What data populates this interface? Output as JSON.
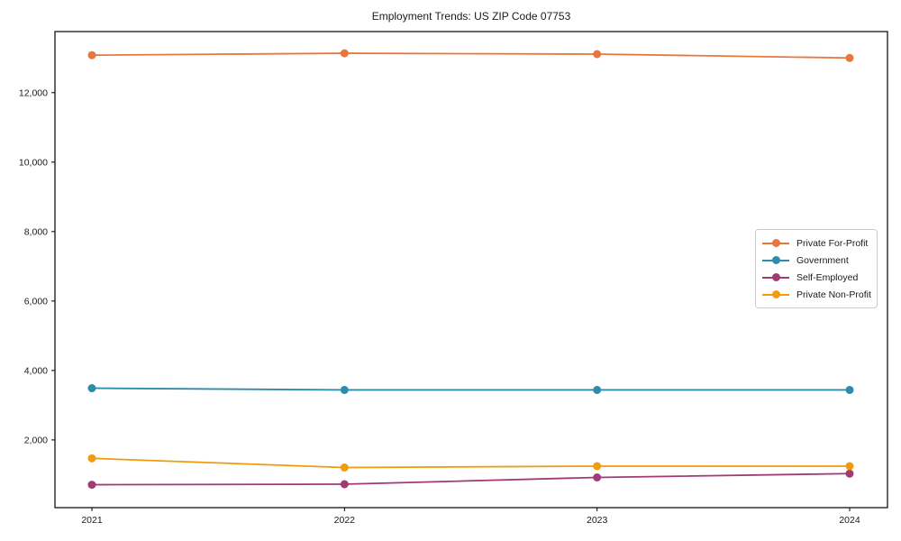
{
  "chart_data": {
    "type": "line",
    "title": "Employment Trends: US ZIP Code 07753",
    "xlabel": "",
    "ylabel": "",
    "x": [
      "2021",
      "2022",
      "2023",
      "2024"
    ],
    "ylim": [
      50,
      13760
    ],
    "yticks": [
      2000,
      4000,
      6000,
      8000,
      10000,
      12000
    ],
    "ytick_labels": [
      "2,000",
      "4,000",
      "6,000",
      "8,000",
      "10,000",
      "12,000"
    ],
    "grid": false,
    "legend_position": "center-right",
    "marker": "circle",
    "series": [
      {
        "name": "Private For-Profit",
        "color": "#e8773d",
        "values": [
          13080,
          13135,
          13110,
          13000
        ]
      },
      {
        "name": "Government",
        "color": "#2f8bab",
        "values": [
          3490,
          3440,
          3440,
          3440
        ]
      },
      {
        "name": "Self-Employed",
        "color": "#a23a74",
        "values": [
          710,
          725,
          920,
          1030
        ]
      },
      {
        "name": "Private Non-Profit",
        "color": "#f09c0e",
        "values": [
          1470,
          1205,
          1245,
          1245
        ]
      }
    ]
  }
}
